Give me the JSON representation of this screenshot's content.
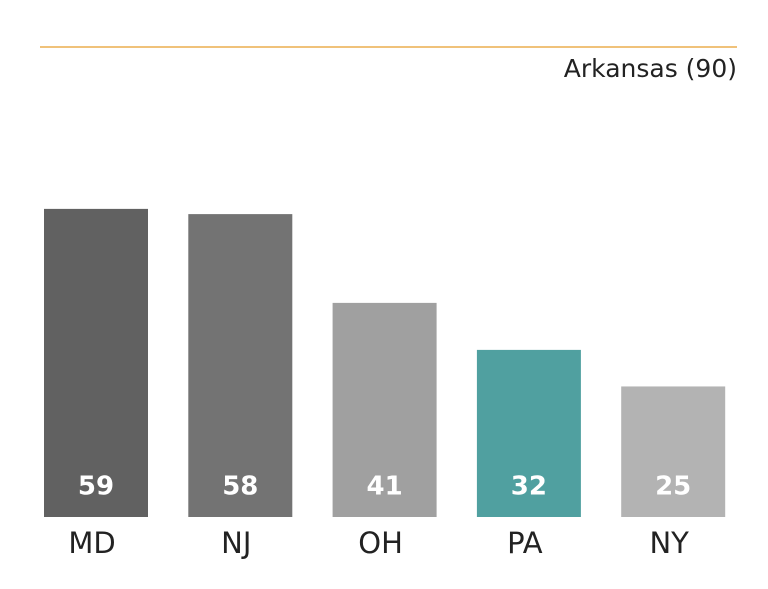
{
  "chart_data": {
    "type": "bar",
    "categories": [
      "MD",
      "NJ",
      "OH",
      "PA",
      "NY"
    ],
    "values": [
      59,
      58,
      41,
      32,
      25
    ],
    "colors": [
      "#616161",
      "#737373",
      "#a0a0a0",
      "#50a0a0",
      "#b3b3b3"
    ],
    "ylim": [
      0,
      90
    ],
    "reference": {
      "label": "Arkansas (90)",
      "value": 90,
      "color": "#f0c27a"
    }
  }
}
